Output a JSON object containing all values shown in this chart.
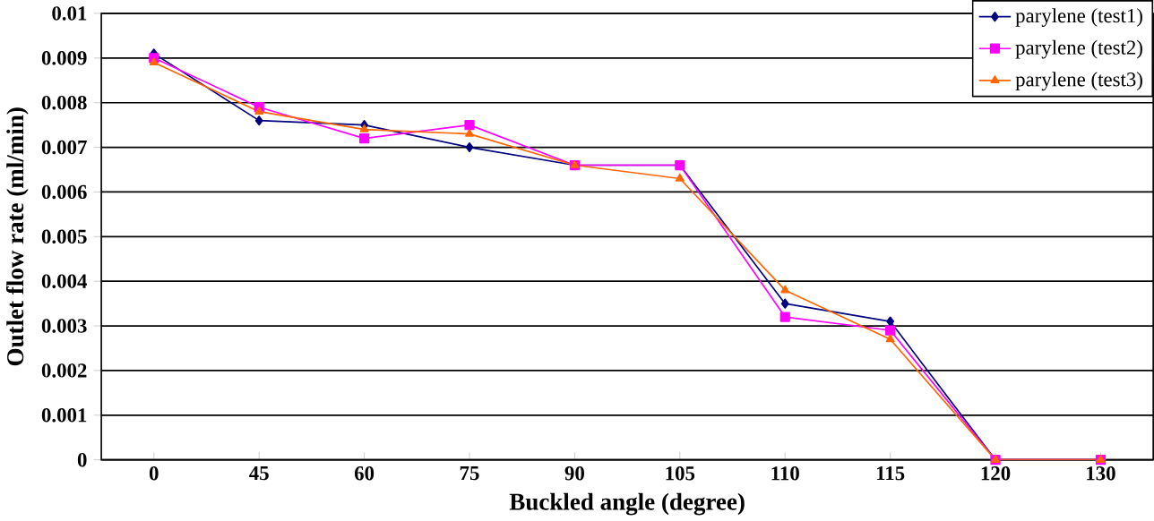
{
  "chart_data": {
    "type": "line",
    "xlabel": "Buckled angle (degree)",
    "ylabel": "Outlet flow rate (ml/min)",
    "categories": [
      "0",
      "45",
      "60",
      "75",
      "90",
      "105",
      "110",
      "115",
      "120",
      "130"
    ],
    "series": [
      {
        "name": "parylene (test1)",
        "color": "#000080",
        "marker": "diamond",
        "values": [
          0.0091,
          0.0076,
          0.0075,
          0.007,
          0.0066,
          0.0066,
          0.0035,
          0.0031,
          0,
          0
        ]
      },
      {
        "name": "parylene (test2)",
        "color": "#ff00ff",
        "marker": "square",
        "values": [
          0.009,
          0.0079,
          0.0072,
          0.0075,
          0.0066,
          0.0066,
          0.0032,
          0.0029,
          0,
          0
        ]
      },
      {
        "name": "parylene (test3)",
        "color": "#ff6600",
        "marker": "triangle",
        "values": [
          0.0089,
          0.0078,
          0.0074,
          0.0073,
          0.0066,
          0.0063,
          0.0038,
          0.0027,
          0,
          0
        ]
      }
    ],
    "ylim": [
      0,
      0.01
    ],
    "yticks": [
      0,
      0.001,
      0.002,
      0.003,
      0.004,
      0.005,
      0.006,
      0.007,
      0.008,
      0.009,
      0.01
    ],
    "grid": "y",
    "legend": "top right",
    "line_style": "solid"
  }
}
